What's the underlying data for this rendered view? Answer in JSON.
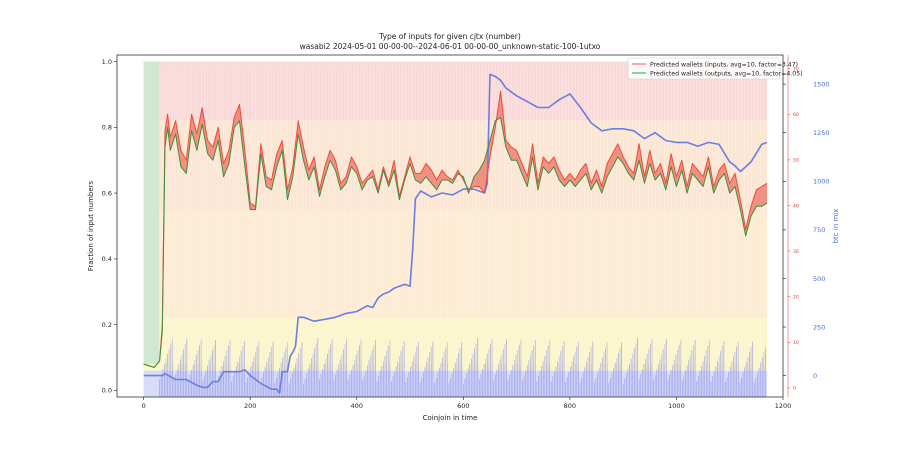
{
  "chart_data": {
    "type": "line",
    "title": "Type of inputs for given cjtx (number)",
    "subtitle": "wasabi2 2024-05-01 00-00-00--2024-06-01 00-00-00_unknown-static-100-1utxo",
    "xlabel": "Coinjoin in time",
    "ylabel": "Fraction of input numbers",
    "y2label": "btc in mix",
    "xlim": [
      -50,
      1200
    ],
    "ylim": [
      -0.02,
      1.02
    ],
    "y2lim": [
      -110,
      1650
    ],
    "y3lim": [
      -2,
      73
    ],
    "x_ticks": [
      "0",
      "200",
      "400",
      "600",
      "800",
      "1000",
      "1200"
    ],
    "y_ticks": [
      "0.0",
      "0.2",
      "0.4",
      "0.6",
      "0.8",
      "1.0"
    ],
    "y2_ticks": [
      "0",
      "250",
      "500",
      "750",
      "1000",
      "1250",
      "1500"
    ],
    "y3_ticks": [
      "0",
      "10",
      "20",
      "30",
      "40",
      "50",
      "60",
      "70"
    ],
    "grid": false,
    "legend_position": "top-right",
    "legend": [
      {
        "label": "Predicted wallets (inputs, avg=10, factor=3.47)",
        "color": "#ff6f6f"
      },
      {
        "label": "Predicted wallets (outputs, avg=10, factor=4.05)",
        "color": "#4caf50"
      }
    ],
    "series": [
      {
        "name": "Predicted wallets (inputs, avg=10, factor=3.47)",
        "axis": "left",
        "x": [
          0,
          20,
          30,
          35,
          40,
          45,
          50,
          60,
          70,
          80,
          90,
          100,
          110,
          120,
          130,
          140,
          150,
          160,
          170,
          180,
          190,
          200,
          210,
          220,
          230,
          240,
          250,
          260,
          270,
          280,
          290,
          300,
          310,
          320,
          330,
          340,
          350,
          360,
          370,
          380,
          390,
          400,
          410,
          420,
          430,
          440,
          450,
          460,
          470,
          480,
          490,
          500,
          510,
          520,
          530,
          540,
          550,
          560,
          570,
          580,
          590,
          600,
          610,
          620,
          630,
          640,
          650,
          660,
          670,
          680,
          690,
          700,
          710,
          720,
          730,
          740,
          750,
          760,
          770,
          780,
          790,
          800,
          810,
          820,
          830,
          840,
          850,
          860,
          870,
          880,
          890,
          900,
          910,
          920,
          930,
          940,
          950,
          960,
          970,
          980,
          990,
          1000,
          1010,
          1020,
          1030,
          1040,
          1050,
          1060,
          1070,
          1080,
          1090,
          1100,
          1110,
          1120,
          1130,
          1140,
          1150,
          1160,
          1170
        ],
        "y": [
          0.08,
          0.07,
          0.09,
          0.2,
          0.79,
          0.84,
          0.77,
          0.82,
          0.73,
          0.7,
          0.84,
          0.78,
          0.86,
          0.76,
          0.74,
          0.8,
          0.69,
          0.73,
          0.83,
          0.87,
          0.73,
          0.57,
          0.56,
          0.75,
          0.65,
          0.64,
          0.72,
          0.76,
          0.61,
          0.68,
          0.82,
          0.74,
          0.67,
          0.71,
          0.61,
          0.68,
          0.73,
          0.7,
          0.63,
          0.65,
          0.71,
          0.68,
          0.63,
          0.65,
          0.67,
          0.61,
          0.68,
          0.63,
          0.7,
          0.59,
          0.65,
          0.71,
          0.66,
          0.66,
          0.69,
          0.67,
          0.64,
          0.67,
          0.65,
          0.64,
          0.67,
          0.64,
          0.61,
          0.62,
          0.62,
          0.6,
          0.71,
          0.8,
          0.91,
          0.76,
          0.74,
          0.73,
          0.69,
          0.65,
          0.75,
          0.63,
          0.71,
          0.69,
          0.71,
          0.67,
          0.64,
          0.66,
          0.64,
          0.67,
          0.69,
          0.63,
          0.67,
          0.62,
          0.69,
          0.72,
          0.75,
          0.71,
          0.68,
          0.66,
          0.75,
          0.65,
          0.73,
          0.66,
          0.69,
          0.63,
          0.72,
          0.65,
          0.7,
          0.62,
          0.69,
          0.67,
          0.65,
          0.71,
          0.62,
          0.67,
          0.69,
          0.63,
          0.66,
          0.58,
          0.49,
          0.56,
          0.61,
          0.62,
          0.63
        ]
      },
      {
        "name": "Predicted wallets (outputs, avg=10, factor=4.05)",
        "axis": "left",
        "x": [
          0,
          20,
          30,
          35,
          40,
          45,
          50,
          60,
          70,
          80,
          90,
          100,
          110,
          120,
          130,
          140,
          150,
          160,
          170,
          180,
          190,
          200,
          210,
          220,
          230,
          240,
          250,
          260,
          270,
          280,
          290,
          300,
          310,
          320,
          330,
          340,
          350,
          360,
          370,
          380,
          390,
          400,
          410,
          420,
          430,
          440,
          450,
          460,
          470,
          480,
          490,
          500,
          510,
          520,
          530,
          540,
          550,
          560,
          570,
          580,
          590,
          600,
          610,
          620,
          630,
          640,
          650,
          660,
          670,
          680,
          690,
          700,
          710,
          720,
          730,
          740,
          750,
          760,
          770,
          780,
          790,
          800,
          810,
          820,
          830,
          840,
          850,
          860,
          870,
          880,
          890,
          900,
          910,
          920,
          930,
          940,
          950,
          960,
          970,
          980,
          990,
          1000,
          1010,
          1020,
          1030,
          1040,
          1050,
          1060,
          1070,
          1080,
          1090,
          1100,
          1110,
          1120,
          1130,
          1140,
          1150,
          1160,
          1170
        ],
        "y": [
          0.08,
          0.07,
          0.09,
          0.18,
          0.74,
          0.8,
          0.73,
          0.78,
          0.68,
          0.66,
          0.79,
          0.73,
          0.81,
          0.72,
          0.7,
          0.76,
          0.65,
          0.69,
          0.8,
          0.82,
          0.68,
          0.55,
          0.55,
          0.72,
          0.62,
          0.61,
          0.68,
          0.73,
          0.58,
          0.65,
          0.78,
          0.7,
          0.64,
          0.68,
          0.59,
          0.65,
          0.7,
          0.67,
          0.61,
          0.63,
          0.68,
          0.66,
          0.61,
          0.64,
          0.65,
          0.6,
          0.67,
          0.62,
          0.67,
          0.58,
          0.64,
          0.69,
          0.64,
          0.63,
          0.65,
          0.63,
          0.61,
          0.64,
          0.64,
          0.63,
          0.66,
          0.65,
          0.6,
          0.65,
          0.67,
          0.7,
          0.76,
          0.82,
          0.83,
          0.74,
          0.7,
          0.7,
          0.66,
          0.62,
          0.71,
          0.61,
          0.68,
          0.66,
          0.68,
          0.64,
          0.62,
          0.64,
          0.62,
          0.64,
          0.66,
          0.61,
          0.64,
          0.6,
          0.65,
          0.68,
          0.71,
          0.69,
          0.66,
          0.64,
          0.7,
          0.63,
          0.69,
          0.64,
          0.66,
          0.61,
          0.68,
          0.62,
          0.67,
          0.6,
          0.66,
          0.64,
          0.62,
          0.68,
          0.6,
          0.64,
          0.66,
          0.6,
          0.62,
          0.55,
          0.47,
          0.53,
          0.56,
          0.56,
          0.57
        ]
      },
      {
        "name": "btc in mix",
        "axis": "right",
        "x": [
          0,
          5,
          35,
          40,
          60,
          80,
          100,
          110,
          120,
          130,
          140,
          150,
          160,
          170,
          180,
          190,
          200,
          220,
          240,
          250,
          255,
          260,
          270,
          275,
          280,
          285,
          290,
          300,
          320,
          340,
          360,
          380,
          400,
          420,
          430,
          440,
          450,
          460,
          470,
          480,
          490,
          500,
          505,
          510,
          520,
          540,
          560,
          580,
          600,
          620,
          640,
          645,
          650,
          660,
          670,
          680,
          700,
          720,
          740,
          760,
          780,
          800,
          820,
          840,
          860,
          880,
          900,
          920,
          940,
          960,
          980,
          1000,
          1020,
          1040,
          1060,
          1080,
          1100,
          1110,
          1120,
          1140,
          1160,
          1170
        ],
        "y": [
          0,
          0,
          0,
          10,
          -20,
          -20,
          -50,
          -60,
          -60,
          -30,
          -30,
          20,
          20,
          20,
          20,
          30,
          0,
          -40,
          -70,
          -70,
          -90,
          20,
          20,
          100,
          120,
          150,
          300,
          300,
          280,
          290,
          300,
          320,
          330,
          360,
          350,
          400,
          420,
          430,
          450,
          460,
          470,
          460,
          650,
          910,
          950,
          920,
          940,
          930,
          960,
          960,
          940,
          990,
          1550,
          1540,
          1520,
          1480,
          1440,
          1410,
          1380,
          1380,
          1420,
          1450,
          1380,
          1300,
          1260,
          1270,
          1270,
          1260,
          1220,
          1250,
          1210,
          1200,
          1200,
          1180,
          1200,
          1190,
          1100,
          1080,
          1050,
          1100,
          1190,
          1200
        ]
      }
    ]
  }
}
